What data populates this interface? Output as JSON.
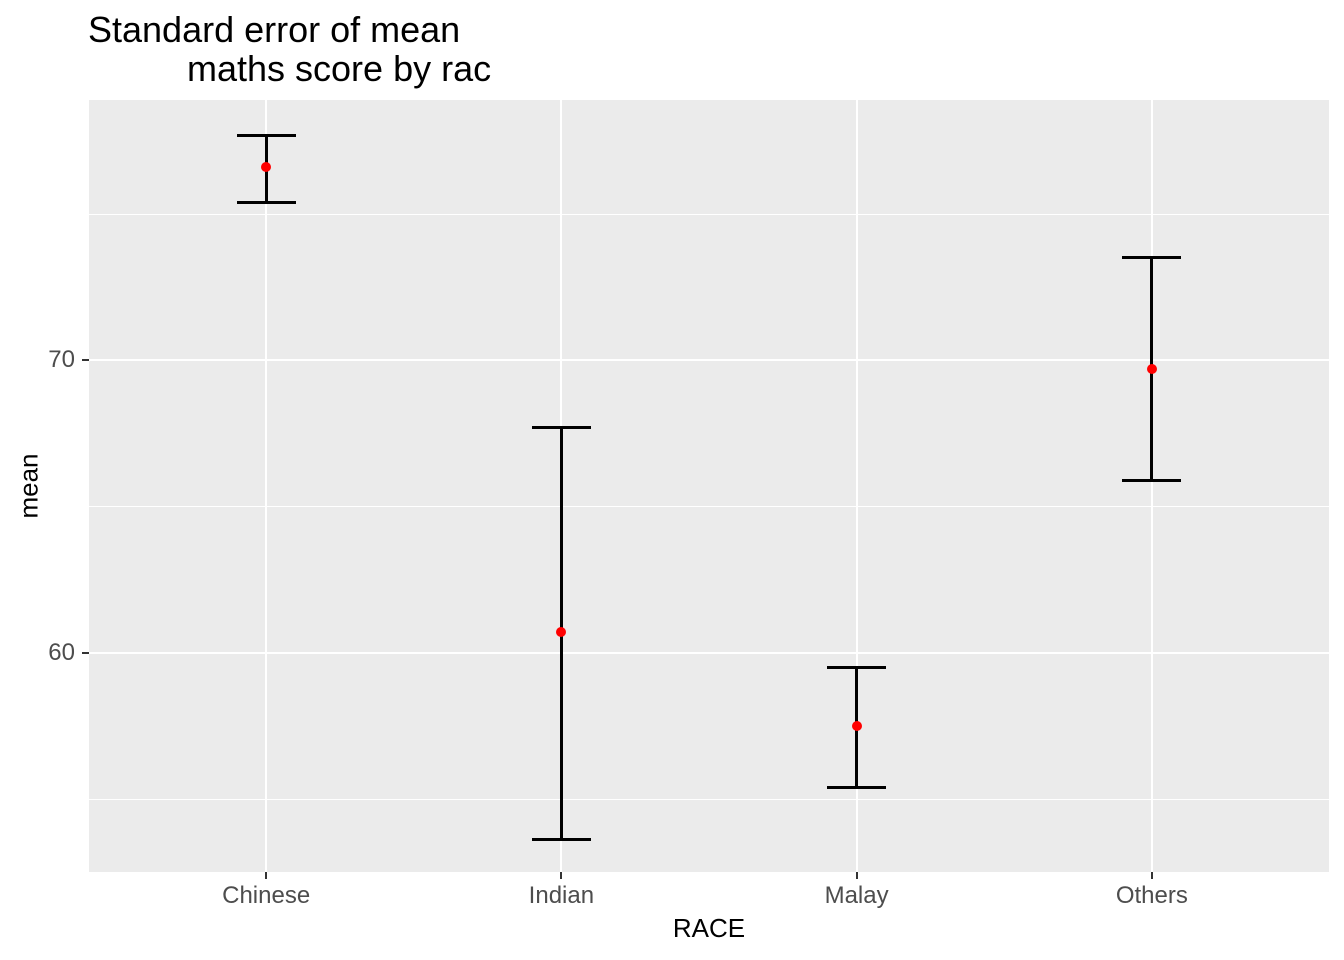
{
  "title": {
    "line1": "Standard error of mean",
    "line2": "maths score by rac"
  },
  "chart_data": {
    "type": "scatter",
    "subtype": "errorbar",
    "title": "Standard error of mean\n        maths score by rac",
    "xlabel": "RACE",
    "ylabel": "mean",
    "categories": [
      "Chinese",
      "Indian",
      "Malay",
      "Others"
    ],
    "series": [
      {
        "name": "mean",
        "values": [
          76.6,
          60.7,
          57.5,
          69.7
        ]
      },
      {
        "name": "lower",
        "values": [
          75.4,
          53.6,
          55.4,
          65.9
        ]
      },
      {
        "name": "upper",
        "values": [
          77.7,
          67.7,
          59.5,
          73.5
        ]
      }
    ],
    "ylim": [
      52.5,
      78.9
    ],
    "yticks": [
      60,
      70
    ],
    "ytick_labels": [
      "60",
      "70"
    ],
    "minor_yticks": [
      55,
      65,
      75
    ],
    "grid": true,
    "legend": false,
    "colors": {
      "point": "#FF0000",
      "errorbar": "#000000",
      "panel_bg": "#EBEBEB",
      "gridline": "#FFFFFF",
      "tick_label": "#4D4D4D",
      "tick_mark": "#333333",
      "text": "#000000"
    }
  }
}
